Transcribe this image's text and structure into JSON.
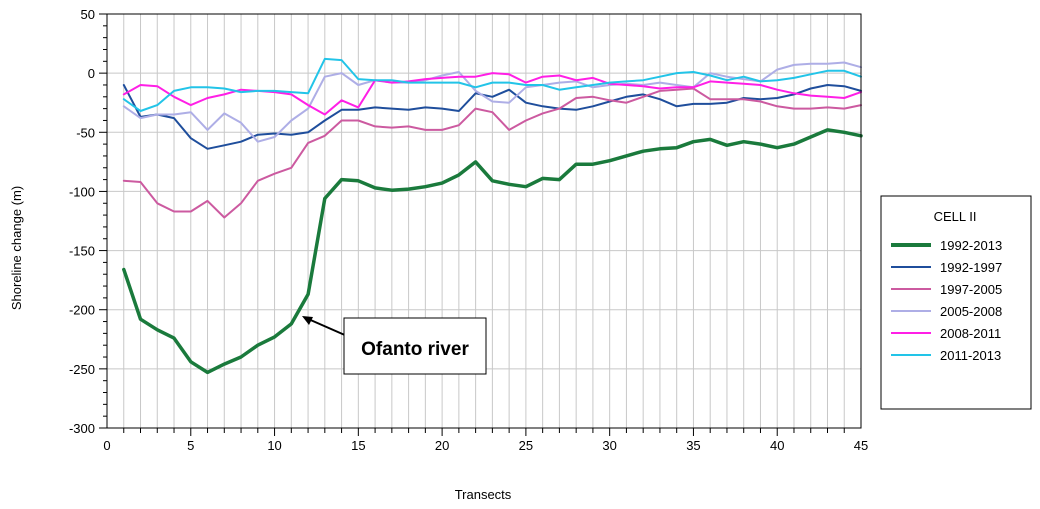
{
  "chart_data": {
    "type": "line",
    "xlabel": "Transects",
    "ylabel": "Shoreline change (m)",
    "xlim": [
      0,
      45
    ],
    "ylim": [
      -300,
      50
    ],
    "xticks": [
      0,
      5,
      10,
      15,
      20,
      25,
      30,
      35,
      40,
      45
    ],
    "yticks": [
      50,
      0,
      -50,
      -100,
      -150,
      -200,
      -250,
      -300
    ],
    "grid": true,
    "legend": {
      "title": "CELL II",
      "placement": "right"
    },
    "annotation": {
      "text": "Ofanto river",
      "points_to": [
        11.7,
        -206
      ]
    },
    "series": [
      {
        "name": "1992-2013",
        "color": "#1a7a3c",
        "x": [
          1,
          2,
          3,
          4,
          5,
          6,
          7,
          8,
          9,
          10,
          11,
          12,
          13,
          14,
          15,
          16,
          17,
          18,
          19,
          20,
          21,
          22,
          23,
          24,
          25,
          26,
          27,
          28,
          29,
          30,
          31,
          32,
          33,
          34,
          35,
          36,
          37,
          38,
          39,
          40,
          41,
          42,
          43,
          44,
          45
        ],
        "y": [
          -166,
          -208,
          -217,
          -224,
          -244,
          -253,
          -246,
          -240,
          -230,
          -223,
          -212,
          -187,
          -106,
          -90,
          -91,
          -97,
          -99,
          -98,
          -96,
          -93,
          -86,
          -75,
          -91,
          -94,
          -96,
          -89,
          -90,
          -77,
          -77,
          -74,
          -70,
          -66,
          -64,
          -63,
          -58,
          -56,
          -61,
          -58,
          -60,
          -63,
          -60,
          -54,
          -48,
          -50,
          -53
        ]
      },
      {
        "name": "1992-1997",
        "color": "#1f4e9c",
        "x": [
          1,
          2,
          3,
          4,
          5,
          6,
          7,
          8,
          9,
          10,
          11,
          12,
          13,
          14,
          15,
          16,
          17,
          18,
          19,
          20,
          21,
          22,
          23,
          24,
          25,
          26,
          27,
          28,
          29,
          30,
          31,
          32,
          33,
          34,
          35,
          36,
          37,
          38,
          39,
          40,
          41,
          42,
          43,
          44,
          45
        ],
        "y": [
          -10,
          -37,
          -35,
          -38,
          -55,
          -64,
          -61,
          -58,
          -52,
          -51,
          -52,
          -50,
          -40,
          -31,
          -31,
          -29,
          -30,
          -31,
          -29,
          -30,
          -32,
          -17,
          -20,
          -14,
          -25,
          -28,
          -30,
          -31,
          -28,
          -24,
          -20,
          -18,
          -22,
          -28,
          -26,
          -26,
          -25,
          -21,
          -22,
          -21,
          -18,
          -13,
          -10,
          -11,
          -15
        ]
      },
      {
        "name": "1997-2005",
        "color": "#cc5aa0",
        "x": [
          1,
          2,
          3,
          4,
          5,
          6,
          7,
          8,
          9,
          10,
          11,
          12,
          13,
          14,
          15,
          16,
          17,
          18,
          19,
          20,
          21,
          22,
          23,
          24,
          25,
          26,
          27,
          28,
          29,
          30,
          31,
          32,
          33,
          34,
          35,
          36,
          37,
          38,
          39,
          40,
          41,
          42,
          43,
          44,
          45
        ],
        "y": [
          -91,
          -92,
          -110,
          -117,
          -117,
          -108,
          -122,
          -110,
          -91,
          -85,
          -80,
          -59,
          -53,
          -40,
          -40,
          -45,
          -46,
          -45,
          -48,
          -48,
          -44,
          -30,
          -33,
          -48,
          -40,
          -34,
          -30,
          -21,
          -20,
          -23,
          -25,
          -20,
          -15,
          -14,
          -13,
          -22,
          -22,
          -22,
          -24,
          -28,
          -30,
          -30,
          -29,
          -30,
          -27
        ]
      },
      {
        "name": "2005-2008",
        "color": "#aeaee6",
        "x": [
          1,
          2,
          3,
          4,
          5,
          6,
          7,
          8,
          9,
          10,
          11,
          12,
          13,
          14,
          15,
          16,
          17,
          18,
          19,
          20,
          21,
          22,
          23,
          24,
          25,
          26,
          27,
          28,
          29,
          30,
          31,
          32,
          33,
          34,
          35,
          36,
          37,
          38,
          39,
          40,
          41,
          42,
          43,
          44,
          45
        ],
        "y": [
          -28,
          -38,
          -35,
          -35,
          -33,
          -48,
          -34,
          -42,
          -58,
          -54,
          -40,
          -30,
          -3,
          0,
          -10,
          -6,
          -8,
          -8,
          -6,
          -2,
          1,
          -15,
          -24,
          -25,
          -12,
          -10,
          -8,
          -7,
          -12,
          -10,
          -9,
          -10,
          -8,
          -10,
          -12,
          0,
          -3,
          -5,
          -7,
          3,
          7,
          8,
          8,
          9,
          5
        ]
      },
      {
        "name": "2008-2011",
        "color": "#ff1fe6",
        "x": [
          1,
          2,
          3,
          4,
          5,
          6,
          7,
          8,
          9,
          10,
          11,
          12,
          13,
          14,
          15,
          16,
          17,
          18,
          19,
          20,
          21,
          22,
          23,
          24,
          25,
          26,
          27,
          28,
          29,
          30,
          31,
          32,
          33,
          34,
          35,
          36,
          37,
          38,
          39,
          40,
          41,
          42,
          43,
          44,
          45
        ],
        "y": [
          -18,
          -10,
          -11,
          -20,
          -27,
          -21,
          -18,
          -14,
          -15,
          -16,
          -18,
          -27,
          -35,
          -23,
          -29,
          -6,
          -8,
          -7,
          -5,
          -4,
          -3,
          -3,
          0,
          -1,
          -8,
          -3,
          -2,
          -6,
          -4,
          -9,
          -10,
          -11,
          -13,
          -12,
          -12,
          -7,
          -8,
          -9,
          -10,
          -14,
          -17,
          -19,
          -20,
          -21,
          -16
        ]
      },
      {
        "name": "2011-2013",
        "color": "#22c4e8",
        "x": [
          1,
          2,
          3,
          4,
          5,
          6,
          7,
          8,
          9,
          10,
          11,
          12,
          13,
          14,
          15,
          16,
          17,
          18,
          19,
          20,
          21,
          22,
          23,
          24,
          25,
          26,
          27,
          28,
          29,
          30,
          31,
          32,
          33,
          34,
          35,
          36,
          37,
          38,
          39,
          40,
          41,
          42,
          43,
          44,
          45
        ],
        "y": [
          -22,
          -32,
          -27,
          -15,
          -12,
          -12,
          -13,
          -16,
          -15,
          -15,
          -16,
          -17,
          12,
          11,
          -5,
          -6,
          -6,
          -8,
          -8,
          -8,
          -8,
          -12,
          -8,
          -8,
          -10,
          -10,
          -14,
          -12,
          -10,
          -8,
          -7,
          -6,
          -3,
          0,
          1,
          -2,
          -6,
          -3,
          -7,
          -6,
          -4,
          -1,
          2,
          2,
          -3
        ]
      }
    ]
  }
}
